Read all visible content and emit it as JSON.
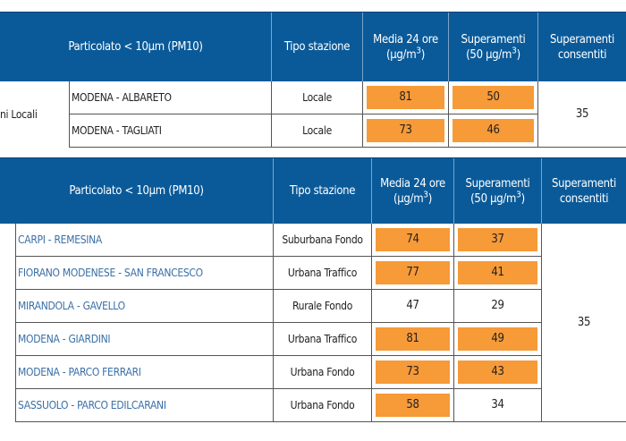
{
  "table1": {
    "header": {
      "pollutant": "Particolato < 10µm (PM10)",
      "tipo": "Tipo stazione",
      "media_line1": "Media 24 ore",
      "media_line2": "(µg/m",
      "sup_line1": "Superamenti",
      "sup_line2": "(50 µg/m",
      "cube": "3",
      "close_paren": ")",
      "allowed_line1": "Superamenti",
      "allowed_line2": "consentiti"
    },
    "region_label": "ni Locali",
    "rows": [
      {
        "station": "MODENA - ALBARETO",
        "tipo": "Locale",
        "media": "81",
        "superamenti": "50"
      },
      {
        "station": "MODENA - TAGLIATI",
        "tipo": "Locale",
        "media": "73",
        "superamenti": "46"
      }
    ],
    "allowed": "35"
  },
  "table2": {
    "header": {
      "pollutant": "Particolato < 10µm (PM10)",
      "tipo": "Tipo stazione",
      "media_line1": "Media 24 ore",
      "media_line2": "(µg/m",
      "sup_line1": "Superamenti",
      "sup_line2": "(50 µg/m",
      "cube": "3",
      "close_paren": ")",
      "allowed_line1": "Superamenti",
      "allowed_line2": "consentiti"
    },
    "rows": [
      {
        "station": "CARPI - REMESINA",
        "tipo": "Suburbana Fondo",
        "media": "74",
        "superamenti": "37",
        "hi_media": true,
        "hi_sup": true
      },
      {
        "station": "FIORANO MODENESE - SAN FRANCESCO",
        "tipo": "Urbana Traffico",
        "media": "77",
        "superamenti": "41",
        "hi_media": true,
        "hi_sup": true
      },
      {
        "station": "MIRANDOLA - GAVELLO",
        "tipo": "Rurale Fondo",
        "media": "47",
        "superamenti": "29",
        "hi_media": false,
        "hi_sup": false
      },
      {
        "station": "MODENA - GIARDINI",
        "tipo": "Urbana Traffico",
        "media": "81",
        "superamenti": "49",
        "hi_media": true,
        "hi_sup": true
      },
      {
        "station": "MODENA - PARCO FERRARI",
        "tipo": "Urbana Fondo",
        "media": "73",
        "superamenti": "43",
        "hi_media": true,
        "hi_sup": true
      },
      {
        "station": "SASSUOLO - PARCO EDILCARANI",
        "tipo": "Urbana Fondo",
        "media": "58",
        "superamenti": "34",
        "hi_media": true,
        "hi_sup": false
      }
    ],
    "allowed": "35"
  },
  "colors": {
    "header_bg": "#0a5a99",
    "exceed_fill": "#f79a38",
    "station_link": "#3a6fa6"
  }
}
